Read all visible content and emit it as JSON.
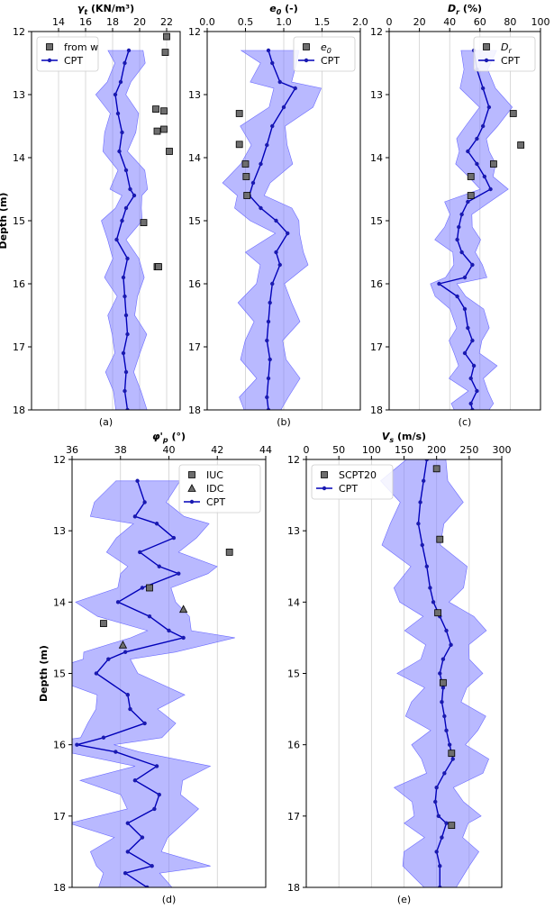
{
  "colors": {
    "band": "#8080ff",
    "cpt_line": "#0000b8",
    "cpt_marker": "#1a1ab0",
    "square_marker": "#6e6e6e",
    "grid": "#d0d0d0"
  },
  "chart_data": [
    {
      "type": "line",
      "panel_label": "(a)",
      "xlabel": "γ_t (KN/m³)",
      "ylabel": "Depth (m)",
      "xlim": [
        12,
        23
      ],
      "ylim": [
        18,
        12
      ],
      "xticks": [
        14,
        16,
        18,
        20,
        22
      ],
      "yticks": [
        12,
        13,
        14,
        15,
        16,
        17,
        18
      ],
      "grid": true,
      "legend": "top-left",
      "series": [
        {
          "name": "from w",
          "kind": "square",
          "points": [
            [
              22.0,
              12.08
            ],
            [
              21.9,
              12.33
            ],
            [
              21.2,
              13.23
            ],
            [
              21.8,
              13.26
            ],
            [
              21.8,
              13.55
            ],
            [
              21.3,
              13.58
            ],
            [
              22.2,
              13.9
            ],
            [
              20.3,
              15.03
            ],
            [
              21.3,
              15.73
            ],
            [
              21.4,
              15.73
            ]
          ]
        },
        {
          "name": "CPT",
          "kind": "line-band",
          "band_width": 1.4,
          "points": [
            [
              19.2,
              12.3
            ],
            [
              18.9,
              12.5
            ],
            [
              18.6,
              12.8
            ],
            [
              18.2,
              13.0
            ],
            [
              18.4,
              13.3
            ],
            [
              18.7,
              13.6
            ],
            [
              18.5,
              13.9
            ],
            [
              19.0,
              14.2
            ],
            [
              19.3,
              14.5
            ],
            [
              19.6,
              14.6
            ],
            [
              19.0,
              14.8
            ],
            [
              18.7,
              15.0
            ],
            [
              18.3,
              15.3
            ],
            [
              19.1,
              15.6
            ],
            [
              18.8,
              15.9
            ],
            [
              18.9,
              16.2
            ],
            [
              19.0,
              16.5
            ],
            [
              19.1,
              16.8
            ],
            [
              18.8,
              17.1
            ],
            [
              19.0,
              17.4
            ],
            [
              18.9,
              17.7
            ],
            [
              19.1,
              18.0
            ]
          ]
        }
      ]
    },
    {
      "type": "line",
      "panel_label": "(b)",
      "xlabel": "e_0 (-)",
      "xlim": [
        0,
        2
      ],
      "ylim": [
        18,
        12
      ],
      "xticks": [
        0.0,
        0.5,
        1.0,
        1.5,
        2.0
      ],
      "yticks": [
        12,
        13,
        14,
        15,
        16,
        17,
        18
      ],
      "grid": true,
      "legend": "top-right",
      "series": [
        {
          "name": "e_0",
          "kind": "square",
          "points": [
            [
              0.42,
              13.3
            ],
            [
              0.42,
              13.79
            ],
            [
              0.5,
              14.1
            ],
            [
              0.51,
              14.3
            ],
            [
              0.52,
              14.6
            ]
          ]
        },
        {
          "name": "CPT",
          "kind": "line-band",
          "band_width": 0.38,
          "points": [
            [
              0.8,
              12.3
            ],
            [
              0.85,
              12.5
            ],
            [
              0.95,
              12.8
            ],
            [
              1.15,
              12.9
            ],
            [
              1.0,
              13.2
            ],
            [
              0.85,
              13.5
            ],
            [
              0.78,
              13.8
            ],
            [
              0.7,
              14.1
            ],
            [
              0.6,
              14.4
            ],
            [
              0.55,
              14.6
            ],
            [
              0.7,
              14.8
            ],
            [
              0.9,
              15.0
            ],
            [
              1.05,
              15.2
            ],
            [
              0.9,
              15.5
            ],
            [
              0.95,
              15.7
            ],
            [
              0.85,
              16.0
            ],
            [
              0.82,
              16.3
            ],
            [
              0.8,
              16.6
            ],
            [
              0.78,
              16.9
            ],
            [
              0.82,
              17.2
            ],
            [
              0.8,
              17.5
            ],
            [
              0.78,
              17.8
            ],
            [
              0.8,
              18.0
            ]
          ]
        }
      ]
    },
    {
      "type": "line",
      "panel_label": "(c)",
      "xlabel": "D_r (%)",
      "xlim": [
        0,
        100
      ],
      "ylim": [
        18,
        12
      ],
      "xticks": [
        0,
        20,
        40,
        60,
        80,
        100
      ],
      "yticks": [
        12,
        13,
        14,
        15,
        16,
        17,
        18
      ],
      "grid": true,
      "legend": "top-right",
      "series": [
        {
          "name": "D_r",
          "kind": "square",
          "points": [
            [
              82,
              13.3
            ],
            [
              87,
              13.8
            ],
            [
              69,
              14.1
            ],
            [
              54,
              14.3
            ],
            [
              54,
              14.6
            ]
          ]
        },
        {
          "name": "CPT",
          "kind": "line-band",
          "band_width": 14,
          "points": [
            [
              56,
              12.3
            ],
            [
              58,
              12.6
            ],
            [
              62,
              12.9
            ],
            [
              66,
              13.2
            ],
            [
              62,
              13.5
            ],
            [
              58,
              13.7
            ],
            [
              52,
              13.9
            ],
            [
              58,
              14.1
            ],
            [
              63,
              14.3
            ],
            [
              67,
              14.5
            ],
            [
              52,
              14.7
            ],
            [
              48,
              14.9
            ],
            [
              46,
              15.1
            ],
            [
              45,
              15.3
            ],
            [
              48,
              15.5
            ],
            [
              55,
              15.7
            ],
            [
              50,
              15.9
            ],
            [
              33,
              16.0
            ],
            [
              45,
              16.2
            ],
            [
              50,
              16.4
            ],
            [
              52,
              16.7
            ],
            [
              55,
              16.9
            ],
            [
              50,
              17.1
            ],
            [
              56,
              17.3
            ],
            [
              54,
              17.5
            ],
            [
              58,
              17.7
            ],
            [
              54,
              17.9
            ],
            [
              55,
              18.0
            ]
          ]
        }
      ]
    },
    {
      "type": "line",
      "panel_label": "(d)",
      "xlabel": "φ'_p (°)",
      "ylabel": "Depth (m)",
      "xlim": [
        36,
        44
      ],
      "ylim": [
        18,
        12
      ],
      "xticks": [
        36,
        38,
        40,
        42,
        44
      ],
      "yticks": [
        12,
        13,
        14,
        15,
        16,
        17,
        18
      ],
      "grid": true,
      "legend": "top-right",
      "series": [
        {
          "name": "IUC",
          "kind": "square",
          "points": [
            [
              42.5,
              13.3
            ],
            [
              39.2,
              13.8
            ],
            [
              37.3,
              14.3
            ]
          ]
        },
        {
          "name": "IDC",
          "kind": "triangle",
          "points": [
            [
              40.6,
              14.1
            ],
            [
              38.1,
              14.6
            ]
          ]
        },
        {
          "name": "CPT",
          "kind": "line-band",
          "band_width": 2.2,
          "points": [
            [
              38.7,
              12.3
            ],
            [
              39.0,
              12.6
            ],
            [
              38.6,
              12.8
            ],
            [
              39.5,
              12.9
            ],
            [
              40.2,
              13.1
            ],
            [
              38.8,
              13.3
            ],
            [
              39.6,
              13.5
            ],
            [
              40.4,
              13.6
            ],
            [
              38.9,
              13.8
            ],
            [
              37.9,
              14.0
            ],
            [
              39.2,
              14.2
            ],
            [
              40.0,
              14.4
            ],
            [
              40.6,
              14.5
            ],
            [
              38.2,
              14.7
            ],
            [
              37.5,
              14.8
            ],
            [
              37.0,
              15.0
            ],
            [
              38.3,
              15.3
            ],
            [
              38.4,
              15.5
            ],
            [
              39.0,
              15.7
            ],
            [
              37.3,
              15.9
            ],
            [
              36.2,
              16.0
            ],
            [
              37.8,
              16.1
            ],
            [
              39.5,
              16.3
            ],
            [
              38.6,
              16.5
            ],
            [
              39.6,
              16.7
            ],
            [
              39.4,
              16.9
            ],
            [
              38.3,
              17.1
            ],
            [
              38.9,
              17.3
            ],
            [
              38.3,
              17.5
            ],
            [
              39.3,
              17.7
            ],
            [
              38.2,
              17.8
            ],
            [
              39.1,
              18.0
            ]
          ]
        }
      ]
    },
    {
      "type": "line",
      "panel_label": "(e)",
      "xlabel": "V_s (m/s)",
      "xlim": [
        0,
        300
      ],
      "ylim": [
        18,
        12
      ],
      "xticks": [
        0,
        50,
        100,
        150,
        200,
        250,
        300
      ],
      "yticks": [
        12,
        13,
        14,
        15,
        16,
        17,
        18
      ],
      "grid": true,
      "legend": "top-left",
      "series": [
        {
          "name": "SCPT20",
          "kind": "square",
          "points": [
            [
              200,
              12.13
            ],
            [
              205,
              13.12
            ],
            [
              202,
              14.15
            ],
            [
              210,
              15.13
            ],
            [
              223,
              16.12
            ],
            [
              223,
              17.13
            ]
          ]
        },
        {
          "name": "CPT",
          "kind": "line-band",
          "band_width": 60,
          "points": [
            [
              185,
              12.0
            ],
            [
              180,
              12.3
            ],
            [
              175,
              12.6
            ],
            [
              172,
              12.9
            ],
            [
              178,
              13.2
            ],
            [
              185,
              13.5
            ],
            [
              190,
              13.8
            ],
            [
              195,
              14.0
            ],
            [
              205,
              14.2
            ],
            [
              215,
              14.4
            ],
            [
              222,
              14.6
            ],
            [
              210,
              14.8
            ],
            [
              205,
              15.0
            ],
            [
              210,
              15.2
            ],
            [
              208,
              15.4
            ],
            [
              212,
              15.6
            ],
            [
              215,
              15.8
            ],
            [
              220,
              16.0
            ],
            [
              225,
              16.2
            ],
            [
              212,
              16.4
            ],
            [
              200,
              16.6
            ],
            [
              198,
              16.8
            ],
            [
              203,
              17.0
            ],
            [
              215,
              17.1
            ],
            [
              208,
              17.3
            ],
            [
              200,
              17.5
            ],
            [
              205,
              17.7
            ],
            [
              205,
              18.0
            ]
          ]
        }
      ]
    }
  ]
}
